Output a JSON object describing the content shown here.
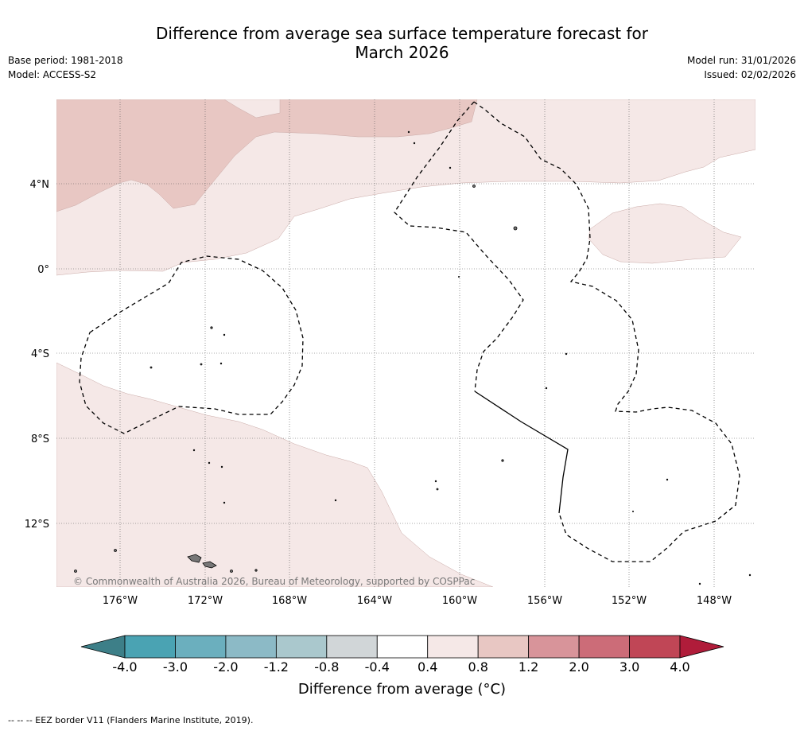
{
  "title_line1": "Difference from average sea surface temperature forecast for",
  "title_line2": "March 2026",
  "base_period": "Base period: 1981-2018",
  "model": "Model: ACCESS-S2",
  "model_run": "Model run: 31/01/2026",
  "issued": "Issued: 02/02/2026",
  "lat_labels": [
    "4°N",
    "0°",
    "4°S",
    "8°S",
    "12°S"
  ],
  "lon_labels": [
    "176°W",
    "172°W",
    "168°W",
    "164°W",
    "160°W",
    "156°W",
    "152°W",
    "148°W"
  ],
  "copyright": "© Commonwealth of Australia 2026, Bureau of Meteorology, supported by COSPPac",
  "colorbar": {
    "ticks": [
      "-4.0",
      "-3.0",
      "-2.0",
      "-1.2",
      "-0.8",
      "-0.4",
      "0.4",
      "0.8",
      "1.2",
      "2.0",
      "3.0",
      "4.0"
    ],
    "colors": [
      "#4aa3b3",
      "#6bafbe",
      "#8cbac6",
      "#aac8cd",
      "#d1d6d8",
      "#ffffff",
      "#f5e8e7",
      "#e8c7c3",
      "#d8949a",
      "#cc6c78",
      "#c04656"
    ],
    "under_color": "#3d7f88",
    "over_color": "#b01c3a",
    "label": "Difference from average (°C)"
  },
  "map_colors": {
    "warm_light": "#f5e8e7",
    "warm_mid": "#e8c7c3"
  },
  "footer": "--  --  -- EEZ border V11 (Flanders Marine Institute, 2019)."
}
